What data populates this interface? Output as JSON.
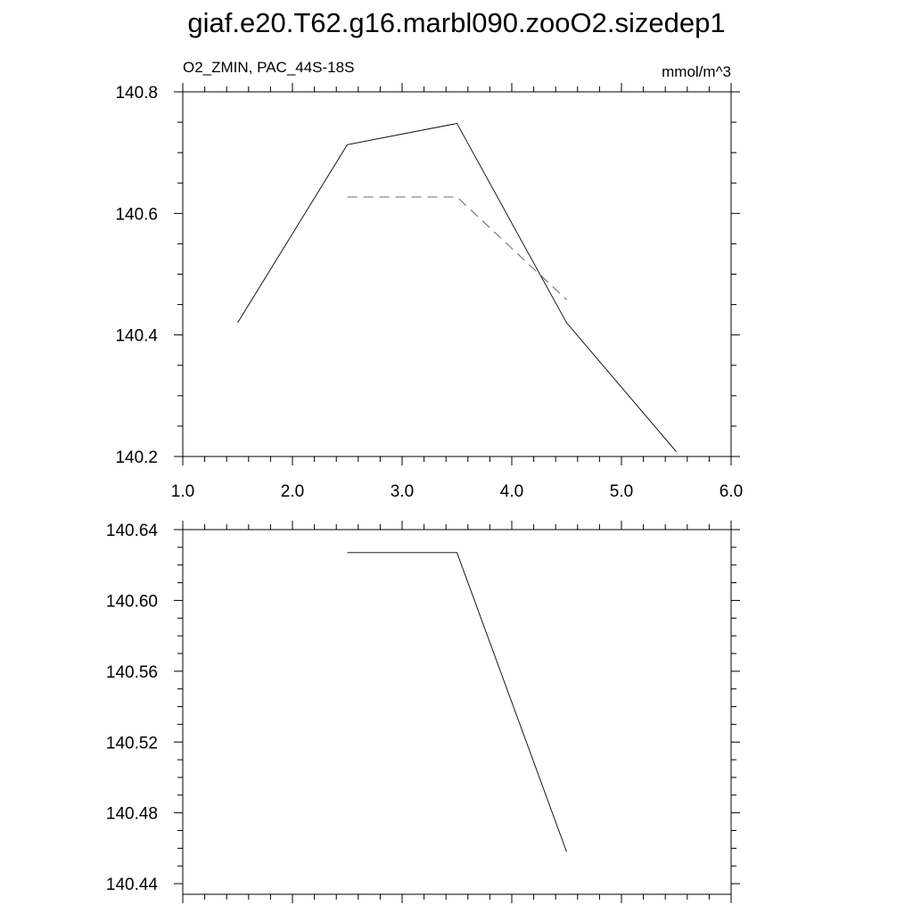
{
  "title": "giaf.e20.T62.g16.marbl090.zooO2.sizedep1",
  "chart_data": [
    {
      "type": "line",
      "left_label": "O2_ZMIN, PAC_44S-18S",
      "right_label": "mmol/m^3",
      "xlim": [
        1.0,
        6.0
      ],
      "ylim": [
        140.2,
        140.8
      ],
      "xticks": [
        "1.0",
        "2.0",
        "3.0",
        "4.0",
        "5.0",
        "6.0"
      ],
      "yticks": [
        "140.2",
        "140.4",
        "140.6",
        "140.8"
      ],
      "series": [
        {
          "style": "solid",
          "color": "#000000",
          "x": [
            1.5,
            2.5,
            3.5,
            4.5,
            5.5
          ],
          "values": [
            140.42,
            140.713,
            140.748,
            140.42,
            140.208
          ]
        },
        {
          "style": "dashed",
          "color": "#000000",
          "x": [
            2.5,
            3.5,
            4.5
          ],
          "values": [
            140.627,
            140.627,
            140.458
          ]
        }
      ]
    },
    {
      "type": "line",
      "xlim": [
        1.0,
        6.0
      ],
      "ylim": [
        140.434,
        140.64
      ],
      "yticks": [
        "140.44",
        "140.48",
        "140.52",
        "140.56",
        "140.60",
        "140.64"
      ],
      "series": [
        {
          "style": "solid",
          "color": "#000000",
          "x": [
            2.5,
            3.5,
            4.5
          ],
          "values": [
            140.627,
            140.627,
            140.458
          ]
        }
      ]
    }
  ]
}
